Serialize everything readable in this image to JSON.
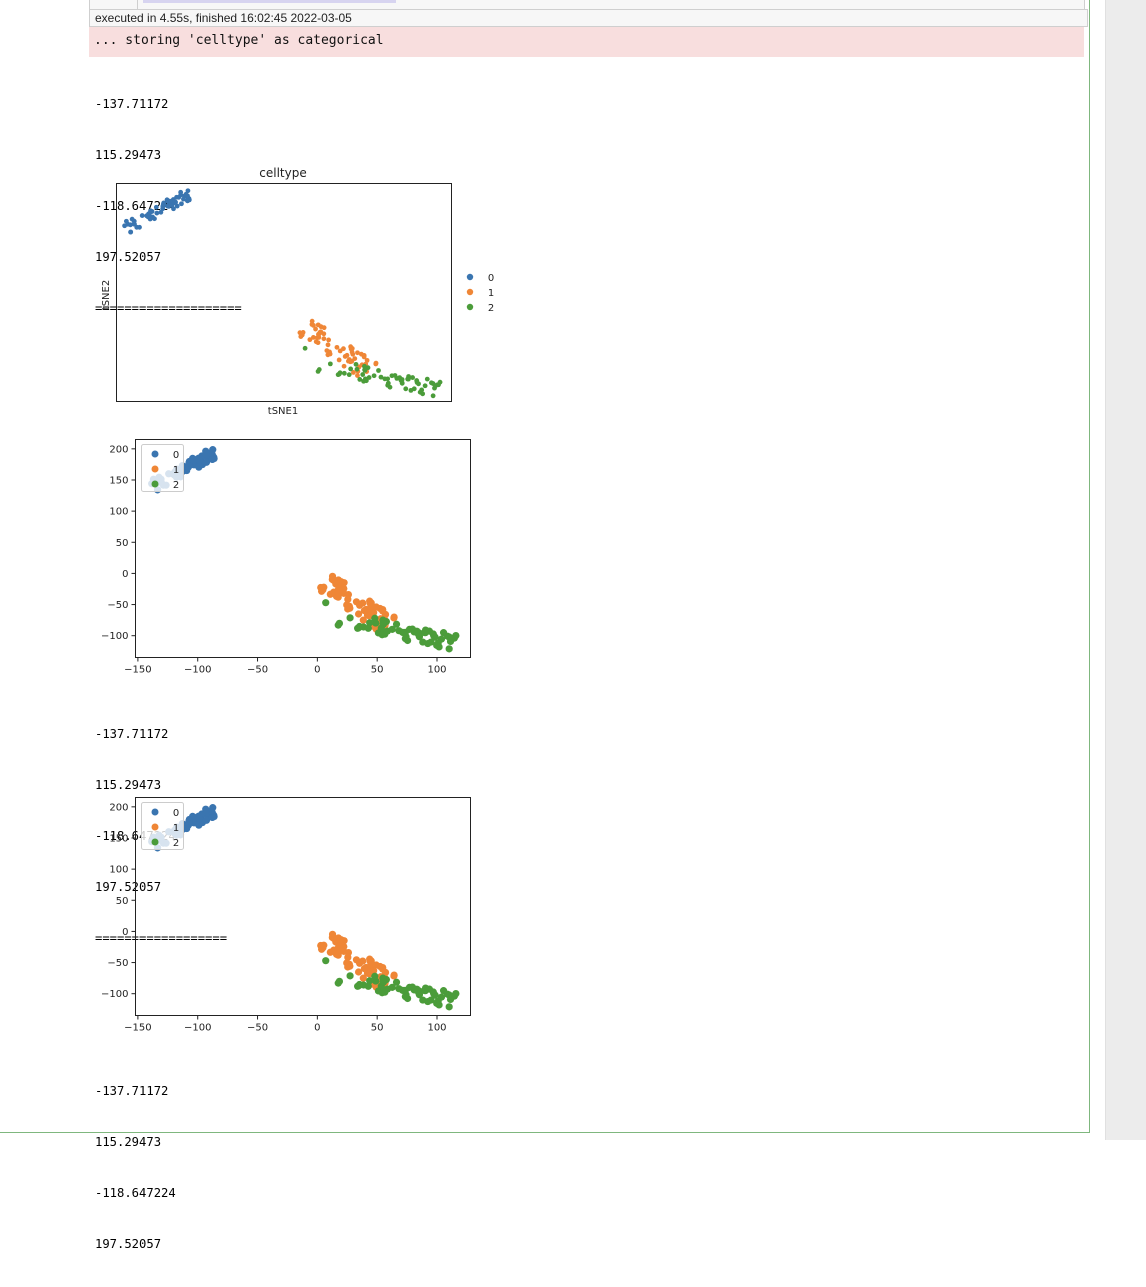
{
  "cell": {
    "execution_info": "executed in 4.55s, finished 16:02:45 2022-03-05",
    "stderr": "... storing 'celltype' as categorical",
    "output_blocks": [
      {
        "lines": [
          "-137.71172",
          "115.29473",
          "-118.647224",
          "197.52057",
          "===================="
        ]
      },
      {
        "lines": [
          "-137.71172",
          "115.29473",
          "-118.647224",
          "197.52057",
          "=================="
        ]
      },
      {
        "lines": [
          "-137.71172",
          "115.29473",
          "-118.647224",
          "197.52057"
        ]
      }
    ]
  },
  "colors": {
    "category_0": "#3a75b0",
    "category_1": "#ef8636",
    "category_2": "#4b9c3a",
    "stderr_bg": "#f8dede",
    "cell_border": "#7fb77e"
  },
  "chart_data": [
    {
      "type": "scatter",
      "title": "celltype",
      "xlabel": "tSNE1",
      "ylabel": "tSNE2",
      "ticks": false,
      "legend": {
        "position": "right-outside",
        "entries": [
          "0",
          "1",
          "2"
        ]
      },
      "xlim": [
        -145,
        125
      ],
      "ylim": [
        -130,
        210
      ],
      "series": [
        {
          "name": "0",
          "color": "#3a75b0",
          "cluster": {
            "x_range": [
              -137.7,
              -85
            ],
            "y_range": [
              135,
              197.5
            ],
            "shape": "diagonal-up"
          }
        },
        {
          "name": "1",
          "color": "#ef8636",
          "cluster": {
            "x_range": [
              5,
              62
            ],
            "y_range": [
              -97,
              -8
            ],
            "shape": "diagonal-down"
          }
        },
        {
          "name": "2",
          "color": "#4b9c3a",
          "cluster": {
            "x_range": [
              7,
              115.3
            ],
            "y_range": [
              -118.6,
              -46
            ],
            "shape": "diagonal-down"
          }
        }
      ]
    },
    {
      "type": "scatter",
      "title": "",
      "xlabel": "",
      "ylabel": "",
      "xticks": [
        -150,
        -100,
        -50,
        0,
        50,
        100
      ],
      "yticks": [
        200,
        150,
        100,
        50,
        0,
        -50,
        -100
      ],
      "xtick_labels": [
        "−150",
        "−100",
        "−50",
        "0",
        "50",
        "100"
      ],
      "ytick_labels": [
        "200",
        "150",
        "100",
        "50",
        "0",
        "−50",
        "−100"
      ],
      "legend": {
        "position": "upper-left",
        "entries": [
          "0",
          "1",
          "2"
        ]
      },
      "xlim": [
        -152,
        128
      ],
      "ylim": [
        -135,
        215
      ],
      "series": [
        {
          "name": "0",
          "color": "#3a75b0",
          "cluster": {
            "x_range": [
              -137.7,
              -85
            ],
            "y_range": [
              135,
              197.5
            ]
          }
        },
        {
          "name": "1",
          "color": "#ef8636",
          "cluster": {
            "x_range": [
              5,
              62
            ],
            "y_range": [
              -97,
              -8
            ]
          }
        },
        {
          "name": "2",
          "color": "#4b9c3a",
          "cluster": {
            "x_range": [
              7,
              115.3
            ],
            "y_range": [
              -118.6,
              -46
            ]
          }
        }
      ]
    },
    {
      "type": "scatter",
      "title": "",
      "xlabel": "",
      "ylabel": "",
      "xticks": [
        -150,
        -100,
        -50,
        0,
        50,
        100
      ],
      "yticks": [
        200,
        150,
        100,
        50,
        0,
        -50,
        -100
      ],
      "xtick_labels": [
        "−150",
        "−100",
        "−50",
        "0",
        "50",
        "100"
      ],
      "ytick_labels": [
        "200",
        "150",
        "100",
        "50",
        "0",
        "−50",
        "−100"
      ],
      "legend": {
        "position": "upper-left",
        "entries": [
          "0",
          "1",
          "2"
        ]
      },
      "xlim": [
        -152,
        128
      ],
      "ylim": [
        -135,
        215
      ],
      "series": [
        {
          "name": "0",
          "color": "#3a75b0",
          "cluster": {
            "x_range": [
              -137.7,
              -85
            ],
            "y_range": [
              135,
              197.5
            ]
          }
        },
        {
          "name": "1",
          "color": "#ef8636",
          "cluster": {
            "x_range": [
              5,
              62
            ],
            "y_range": [
              -97,
              -8
            ]
          }
        },
        {
          "name": "2",
          "color": "#4b9c3a",
          "cluster": {
            "x_range": [
              7,
              115.3
            ],
            "y_range": [
              -118.6,
              -46
            ]
          }
        }
      ]
    }
  ]
}
